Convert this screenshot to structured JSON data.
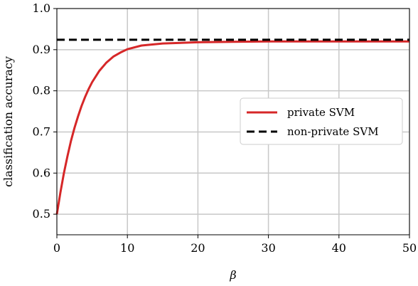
{
  "chart_data": {
    "type": "line",
    "xlabel": "β",
    "ylabel": "classification accuracy",
    "xlim": [
      0,
      50
    ],
    "ylim": [
      0.45,
      1.0
    ],
    "xticks": [
      0,
      10,
      20,
      30,
      40,
      50
    ],
    "xtick_labels": [
      "0",
      "10",
      "20",
      "30",
      "40",
      "50"
    ],
    "yticks": [
      0.5,
      0.6,
      0.7,
      0.8,
      0.9,
      1.0
    ],
    "ytick_labels": [
      "0.5",
      "0.6",
      "0.7",
      "0.8",
      "0.9",
      "1.0"
    ],
    "grid": true,
    "legend_position": "center-right",
    "series": [
      {
        "name": "private SVM",
        "color": "#d62728",
        "style": "solid",
        "x": [
          0,
          0.5,
          1,
          1.5,
          2,
          2.5,
          3,
          3.5,
          4,
          4.5,
          5,
          6,
          7,
          8,
          9,
          10,
          12,
          15,
          20,
          25,
          30,
          40,
          50
        ],
        "y": [
          0.5,
          0.553,
          0.6,
          0.641,
          0.678,
          0.71,
          0.738,
          0.763,
          0.785,
          0.804,
          0.821,
          0.848,
          0.868,
          0.883,
          0.893,
          0.901,
          0.91,
          0.915,
          0.918,
          0.919,
          0.92,
          0.92,
          0.92
        ]
      },
      {
        "name": "non-private SVM",
        "color": "#000000",
        "style": "dashed",
        "x": [
          0,
          50
        ],
        "y": [
          0.924,
          0.924
        ]
      }
    ]
  }
}
